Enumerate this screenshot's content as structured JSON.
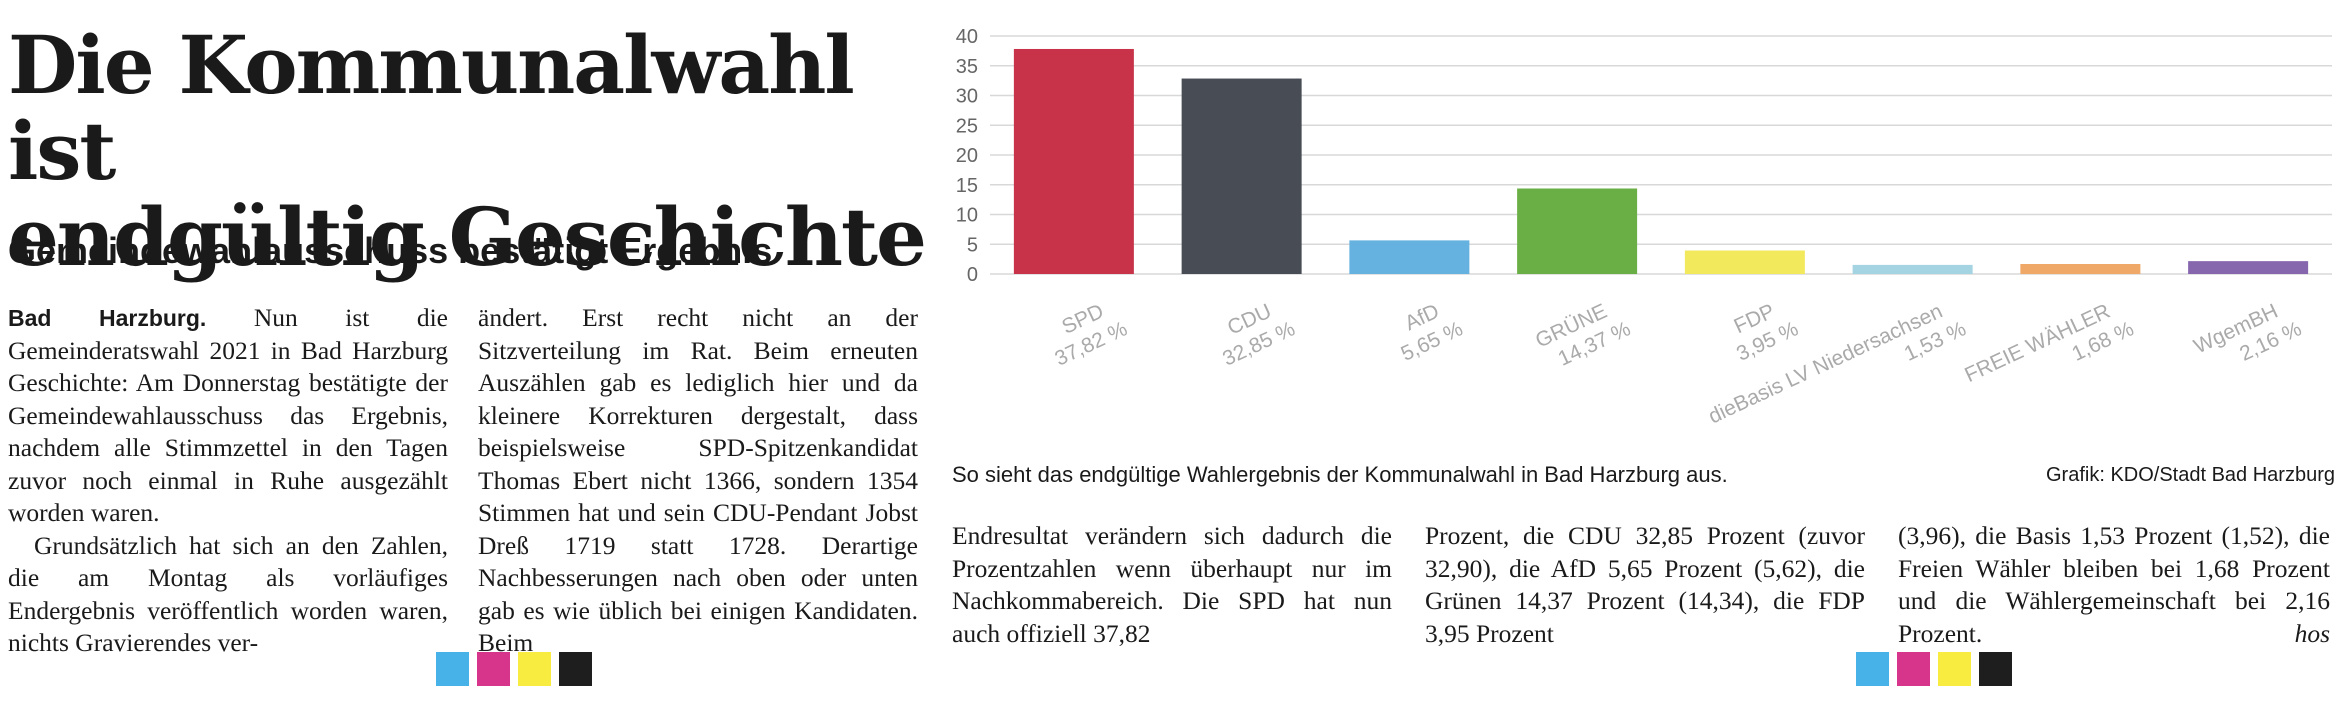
{
  "article": {
    "headline_line1": "Die Kommunalwahl ist",
    "headline_line2": "endgültig Geschichte",
    "subhead": "Gemeindewahlausschuss bestätigt Ergebnis",
    "dateline": "Bad Harzburg.",
    "col_a_p1": " Nun ist die Gemeinderatswahl 2021 in Bad Harzburg Geschichte: Am Donnerstag bestätigte der Gemeindewahlausschuss das Ergebnis, nachdem alle Stimmzettel in den Tagen zuvor noch einmal in Ruhe ausgezählt worden waren.",
    "col_a_p2": "Grundsätzlich hat sich an den Zahlen, die am Montag als vorläufiges Endergebnis veröffentlich worden waren, nichts Gravierendes ver-",
    "col_b": "ändert. Erst recht nicht an der Sitzverteilung im Rat. Beim erneuten Auszählen gab es lediglich hier und da kleinere Korrekturen dergestalt, dass beispielsweise SPD-Spitzenkandidat Thomas Ebert nicht 1366, sondern 1354 Stimmen hat und sein CDU-Pendant Jobst Dreß 1719 statt 1728. Derartige Nachbesserungen nach oben oder unten gab es wie üblich bei einigen Kandidaten. Beim",
    "col_c": "Endresultat verändern sich dadurch die Prozentzahlen wenn überhaupt nur im Nachkommabereich. Die SPD hat nun auch offiziell 37,82",
    "col_d": "Prozent, die CDU 32,85 Prozent (zuvor 32,90), die AfD 5,65 Prozent (5,62), die Grünen 14,37 Prozent (14,34), die FDP 3,95 Prozent",
    "col_e": "(3,96), die Basis 1,53 Prozent (1,52), die Freien Wähler bleiben bei 1,68 Prozent und die Wählergemeinschaft bei 2,16 Prozent.",
    "author": "hos",
    "caption": "So sieht das endgültige Wahlergebnis der Kommunalwahl in Bad Harzburg aus.",
    "credit": "Grafik: KDO/Stadt Bad Harzburg"
  },
  "chart_data": {
    "type": "bar",
    "title": "",
    "xlabel": "",
    "ylabel": "",
    "ylim": [
      0,
      40
    ],
    "yticks": [
      0,
      5,
      10,
      15,
      20,
      25,
      30,
      35,
      40
    ],
    "grid": true,
    "categories": [
      "SPD",
      "CDU",
      "AfD",
      "GRÜNE",
      "FDP",
      "dieBasis LV Niedersachsen",
      "FREIE WÄHLER",
      "WgemBH"
    ],
    "value_labels": [
      "37,82 %",
      "32,85 %",
      "5,65 %",
      "14,37 %",
      "3,95 %",
      "1,53 %",
      "1,68 %",
      "2,16 %"
    ],
    "values": [
      37.82,
      32.85,
      5.65,
      14.37,
      3.95,
      1.53,
      1.68,
      2.16
    ],
    "colors": [
      "#c8334a",
      "#474c55",
      "#65b1e0",
      "#6aaf45",
      "#f2e95c",
      "#a4d4e2",
      "#f0a868",
      "#8666ad"
    ]
  },
  "print_marks": {
    "left": [
      "#47b2e8",
      "#d6358b",
      "#f7ec3f",
      "#1e1e1e"
    ],
    "right": [
      "#47b2e8",
      "#d6358b",
      "#f7ec3f",
      "#1e1e1e"
    ]
  }
}
